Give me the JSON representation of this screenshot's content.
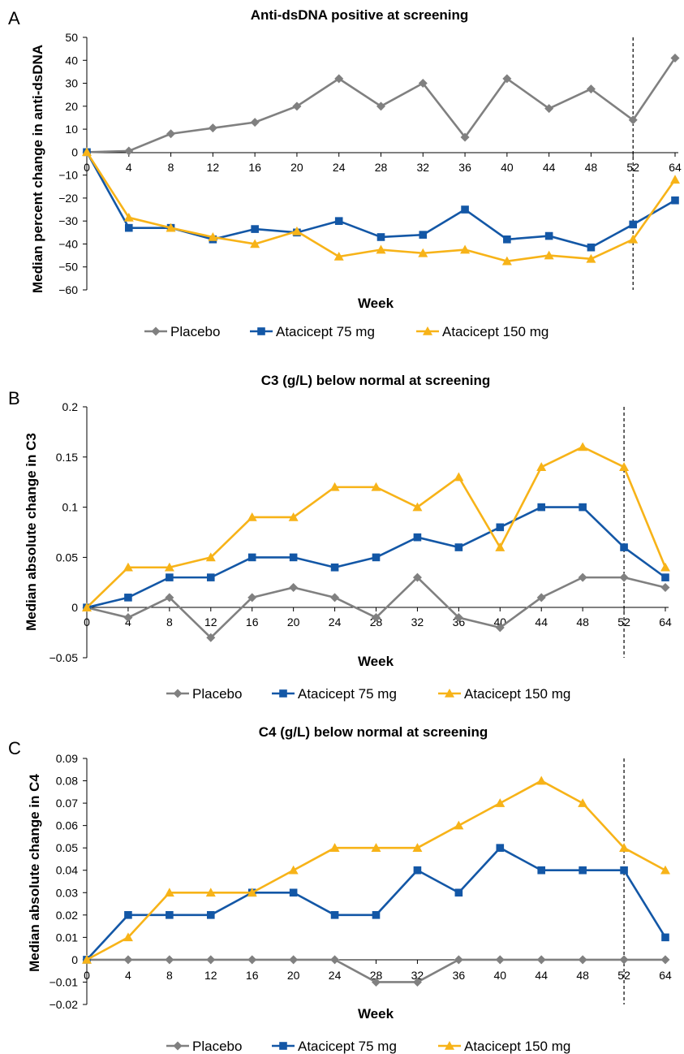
{
  "colors": {
    "placebo": "#808080",
    "atacicept_75": "#1357a6",
    "atacicept_150": "#f7b318",
    "axis": "#000000",
    "reference_line": "#000000"
  },
  "legend_labels": [
    "Placebo",
    "Atacicept 75 mg",
    "Atacicept 150 mg"
  ],
  "chart_data": [
    {
      "panel": "A",
      "type": "line",
      "title": "Anti-dsDNA positive at screening",
      "xlabel": "Week",
      "ylabel": "Median percent change in anti-dsDNA",
      "categories": [
        "0",
        "4",
        "8",
        "12",
        "16",
        "20",
        "24",
        "28",
        "32",
        "36",
        "40",
        "44",
        "48",
        "52",
        "64"
      ],
      "ylim": [
        -60,
        50
      ],
      "yticks": [
        50,
        40,
        30,
        20,
        10,
        0,
        -10,
        -20,
        -30,
        -40,
        -50,
        -60
      ],
      "ytick_labels": [
        "50",
        "40",
        "30",
        "20",
        "10",
        "0",
        "−10",
        "−20",
        "−30",
        "−40",
        "−50",
        "−60"
      ],
      "reference_line_at": "52",
      "grid": false,
      "legend_position": "bottom",
      "series": [
        {
          "name": "Placebo",
          "marker": "diamond",
          "values": [
            0,
            0.5,
            8,
            10.5,
            13,
            20,
            32,
            20,
            30,
            6.5,
            32,
            19,
            27.5,
            14,
            41
          ]
        },
        {
          "name": "Atacicept 75 mg",
          "marker": "square",
          "values": [
            0,
            -33,
            -33,
            -38,
            -33.5,
            -35,
            -30,
            -37,
            -36,
            -25,
            -38,
            -36.5,
            -41.5,
            -31.5,
            -21
          ]
        },
        {
          "name": "Atacicept 150 mg",
          "marker": "triangle",
          "values": [
            0,
            -28.5,
            -33,
            -37,
            -40,
            -34.5,
            -45.5,
            -42.5,
            -44,
            -42.5,
            -47.5,
            -45,
            -46.5,
            -38,
            -12
          ]
        }
      ]
    },
    {
      "panel": "B",
      "type": "line",
      "title": "C3 (g/L) below normal at screening",
      "xlabel": "Week",
      "ylabel": "Median absolute change in C3",
      "categories": [
        "0",
        "4",
        "8",
        "12",
        "16",
        "20",
        "24",
        "28",
        "32",
        "36",
        "40",
        "44",
        "48",
        "52",
        "64"
      ],
      "ylim": [
        -0.05,
        0.2
      ],
      "yticks": [
        0.2,
        0.15,
        0.1,
        0.05,
        0,
        -0.05
      ],
      "ytick_labels": [
        "0.2",
        "0.15",
        "0.1",
        "0.05",
        "0",
        "−0.05"
      ],
      "reference_line_at": "52",
      "grid": false,
      "legend_position": "bottom",
      "series": [
        {
          "name": "Placebo",
          "marker": "diamond",
          "values": [
            0,
            -0.01,
            0.01,
            -0.03,
            0.01,
            0.02,
            0.01,
            -0.01,
            0.03,
            -0.01,
            -0.02,
            0.01,
            0.03,
            0.03,
            0.02
          ]
        },
        {
          "name": "Atacicept 75 mg",
          "marker": "square",
          "values": [
            0,
            0.01,
            0.03,
            0.03,
            0.05,
            0.05,
            0.04,
            0.05,
            0.07,
            0.06,
            0.08,
            0.1,
            0.1,
            0.06,
            0.03
          ]
        },
        {
          "name": "Atacicept 150 mg",
          "marker": "triangle",
          "values": [
            0,
            0.04,
            0.04,
            0.05,
            0.09,
            0.09,
            0.12,
            0.12,
            0.1,
            0.13,
            0.06,
            0.14,
            0.16,
            0.14,
            0.04
          ]
        }
      ]
    },
    {
      "panel": "C",
      "type": "line",
      "title": "C4 (g/L) below normal at screening",
      "xlabel": "Week",
      "ylabel": "Median absolute change in C4",
      "categories": [
        "0",
        "4",
        "8",
        "12",
        "16",
        "20",
        "24",
        "28",
        "32",
        "36",
        "40",
        "44",
        "48",
        "52",
        "64"
      ],
      "ylim": [
        -0.02,
        0.09
      ],
      "yticks": [
        0.09,
        0.08,
        0.07,
        0.06,
        0.05,
        0.04,
        0.03,
        0.02,
        0.01,
        0,
        -0.01,
        -0.02
      ],
      "ytick_labels": [
        "0.09",
        "0.08",
        "0.07",
        "0.06",
        "0.05",
        "0.04",
        "0.03",
        "0.02",
        "0.01",
        "0",
        "−0.01",
        "−0.02"
      ],
      "reference_line_at": "52",
      "grid": false,
      "legend_position": "bottom",
      "series": [
        {
          "name": "Placebo",
          "marker": "diamond",
          "values": [
            0,
            0,
            0,
            0,
            0,
            0,
            0,
            -0.01,
            -0.01,
            0,
            0,
            0,
            0,
            0,
            0
          ]
        },
        {
          "name": "Atacicept 75 mg",
          "marker": "square",
          "values": [
            0,
            0.02,
            0.02,
            0.02,
            0.03,
            0.03,
            0.02,
            0.02,
            0.04,
            0.03,
            0.05,
            0.04,
            0.04,
            0.04,
            0.01
          ]
        },
        {
          "name": "Atacicept 150 mg",
          "marker": "triangle",
          "values": [
            0,
            0.01,
            0.03,
            0.03,
            0.03,
            0.04,
            0.05,
            0.05,
            0.05,
            0.06,
            0.07,
            0.08,
            0.07,
            0.05,
            0.04
          ]
        }
      ]
    }
  ]
}
